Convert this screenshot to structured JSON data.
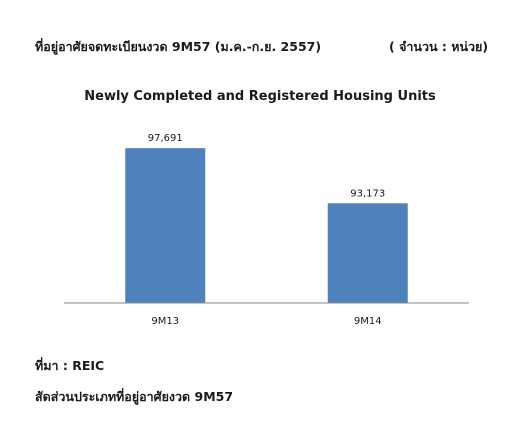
{
  "header": {
    "left_text": "ที่อยู่อาศัยจดทะเบียนงวด 9M57  (ม.ค.-ก.ย. 2557)",
    "right_text": "( จำนวน : หน่วย)"
  },
  "footer": {
    "source_text": "ที่มา : REIC",
    "caption_text": "สัดส่วนประเภทที่อยู่อาศัยงวด 9M57"
  },
  "chart_data": {
    "type": "bar",
    "title": "Newly Completed and Registered Housing Units",
    "categories": [
      "9M13",
      "9M14"
    ],
    "values": [
      97691,
      93173
    ],
    "data_labels": [
      "97,691",
      "93,173"
    ],
    "ylim": [
      85000,
      100000
    ],
    "grid": false,
    "legend": "none",
    "bar_color": "#4f81bd",
    "axis_color": "#868686"
  }
}
